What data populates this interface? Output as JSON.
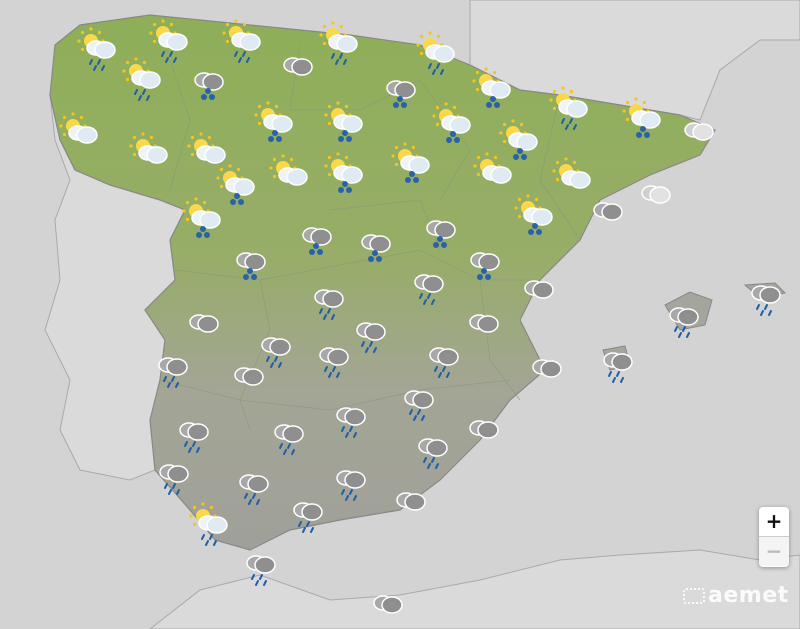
{
  "map": {
    "colors": {
      "sea": "#d3d3d3",
      "neighbor_land": "#dcdcdc",
      "spain_north": "#8eae58",
      "spain_south": "#a3a39b",
      "rain": "#1f5fa8",
      "snow": "#2a62a8",
      "sun": "#f5c51d"
    },
    "forecast_icons": [
      "sun-cloud-rain",
      "sun-cloud-rain",
      "sun-cloud-rain",
      "sun-cloud-rain",
      "sun-cloud-rain",
      "sun-cloud-rain",
      "cloud-snow",
      "cloud",
      "cloud-snow",
      "sun-cloud-snow",
      "sun-cloud-rain",
      "sun-cloud-snow",
      "cloud-light",
      "sun-cloud",
      "sun-cloud",
      "sun-cloud",
      "sun-cloud-snow",
      "sun-cloud-snow",
      "sun-cloud-snow",
      "sun-cloud-snow",
      "sun-cloud-snow",
      "sun-cloud",
      "sun-cloud-snow",
      "sun-cloud-snow",
      "sun-cloud",
      "sun-cloud",
      "cloud-light",
      "cloud",
      "sun-cloud-snow",
      "sun-cloud-snow",
      "cloud-snow",
      "cloud-snow",
      "cloud-snow",
      "cloud-snow",
      "cloud-snow",
      "cloud-rain",
      "cloud",
      "cloud-rain",
      "cloud",
      "cloud",
      "cloud-rain",
      "cloud-rain",
      "cloud-rain",
      "cloud-rain",
      "cloud-rain",
      "cloud-rain",
      "cloud-rain",
      "cloud",
      "cloud-rain",
      "cloud",
      "cloud-rain",
      "cloud-rain",
      "cloud-rain",
      "cloud-rain",
      "cloud",
      "cloud-rain",
      "cloud-rain",
      "cloud-rain",
      "cloud-rain",
      "cloud",
      "cloud-rain",
      "sun-cloud-rain",
      "cloud-rain",
      "cloud"
    ]
  },
  "controls": {
    "zoom_in": "+",
    "zoom_out": "−"
  },
  "branding": {
    "logo_text": "aemet"
  }
}
